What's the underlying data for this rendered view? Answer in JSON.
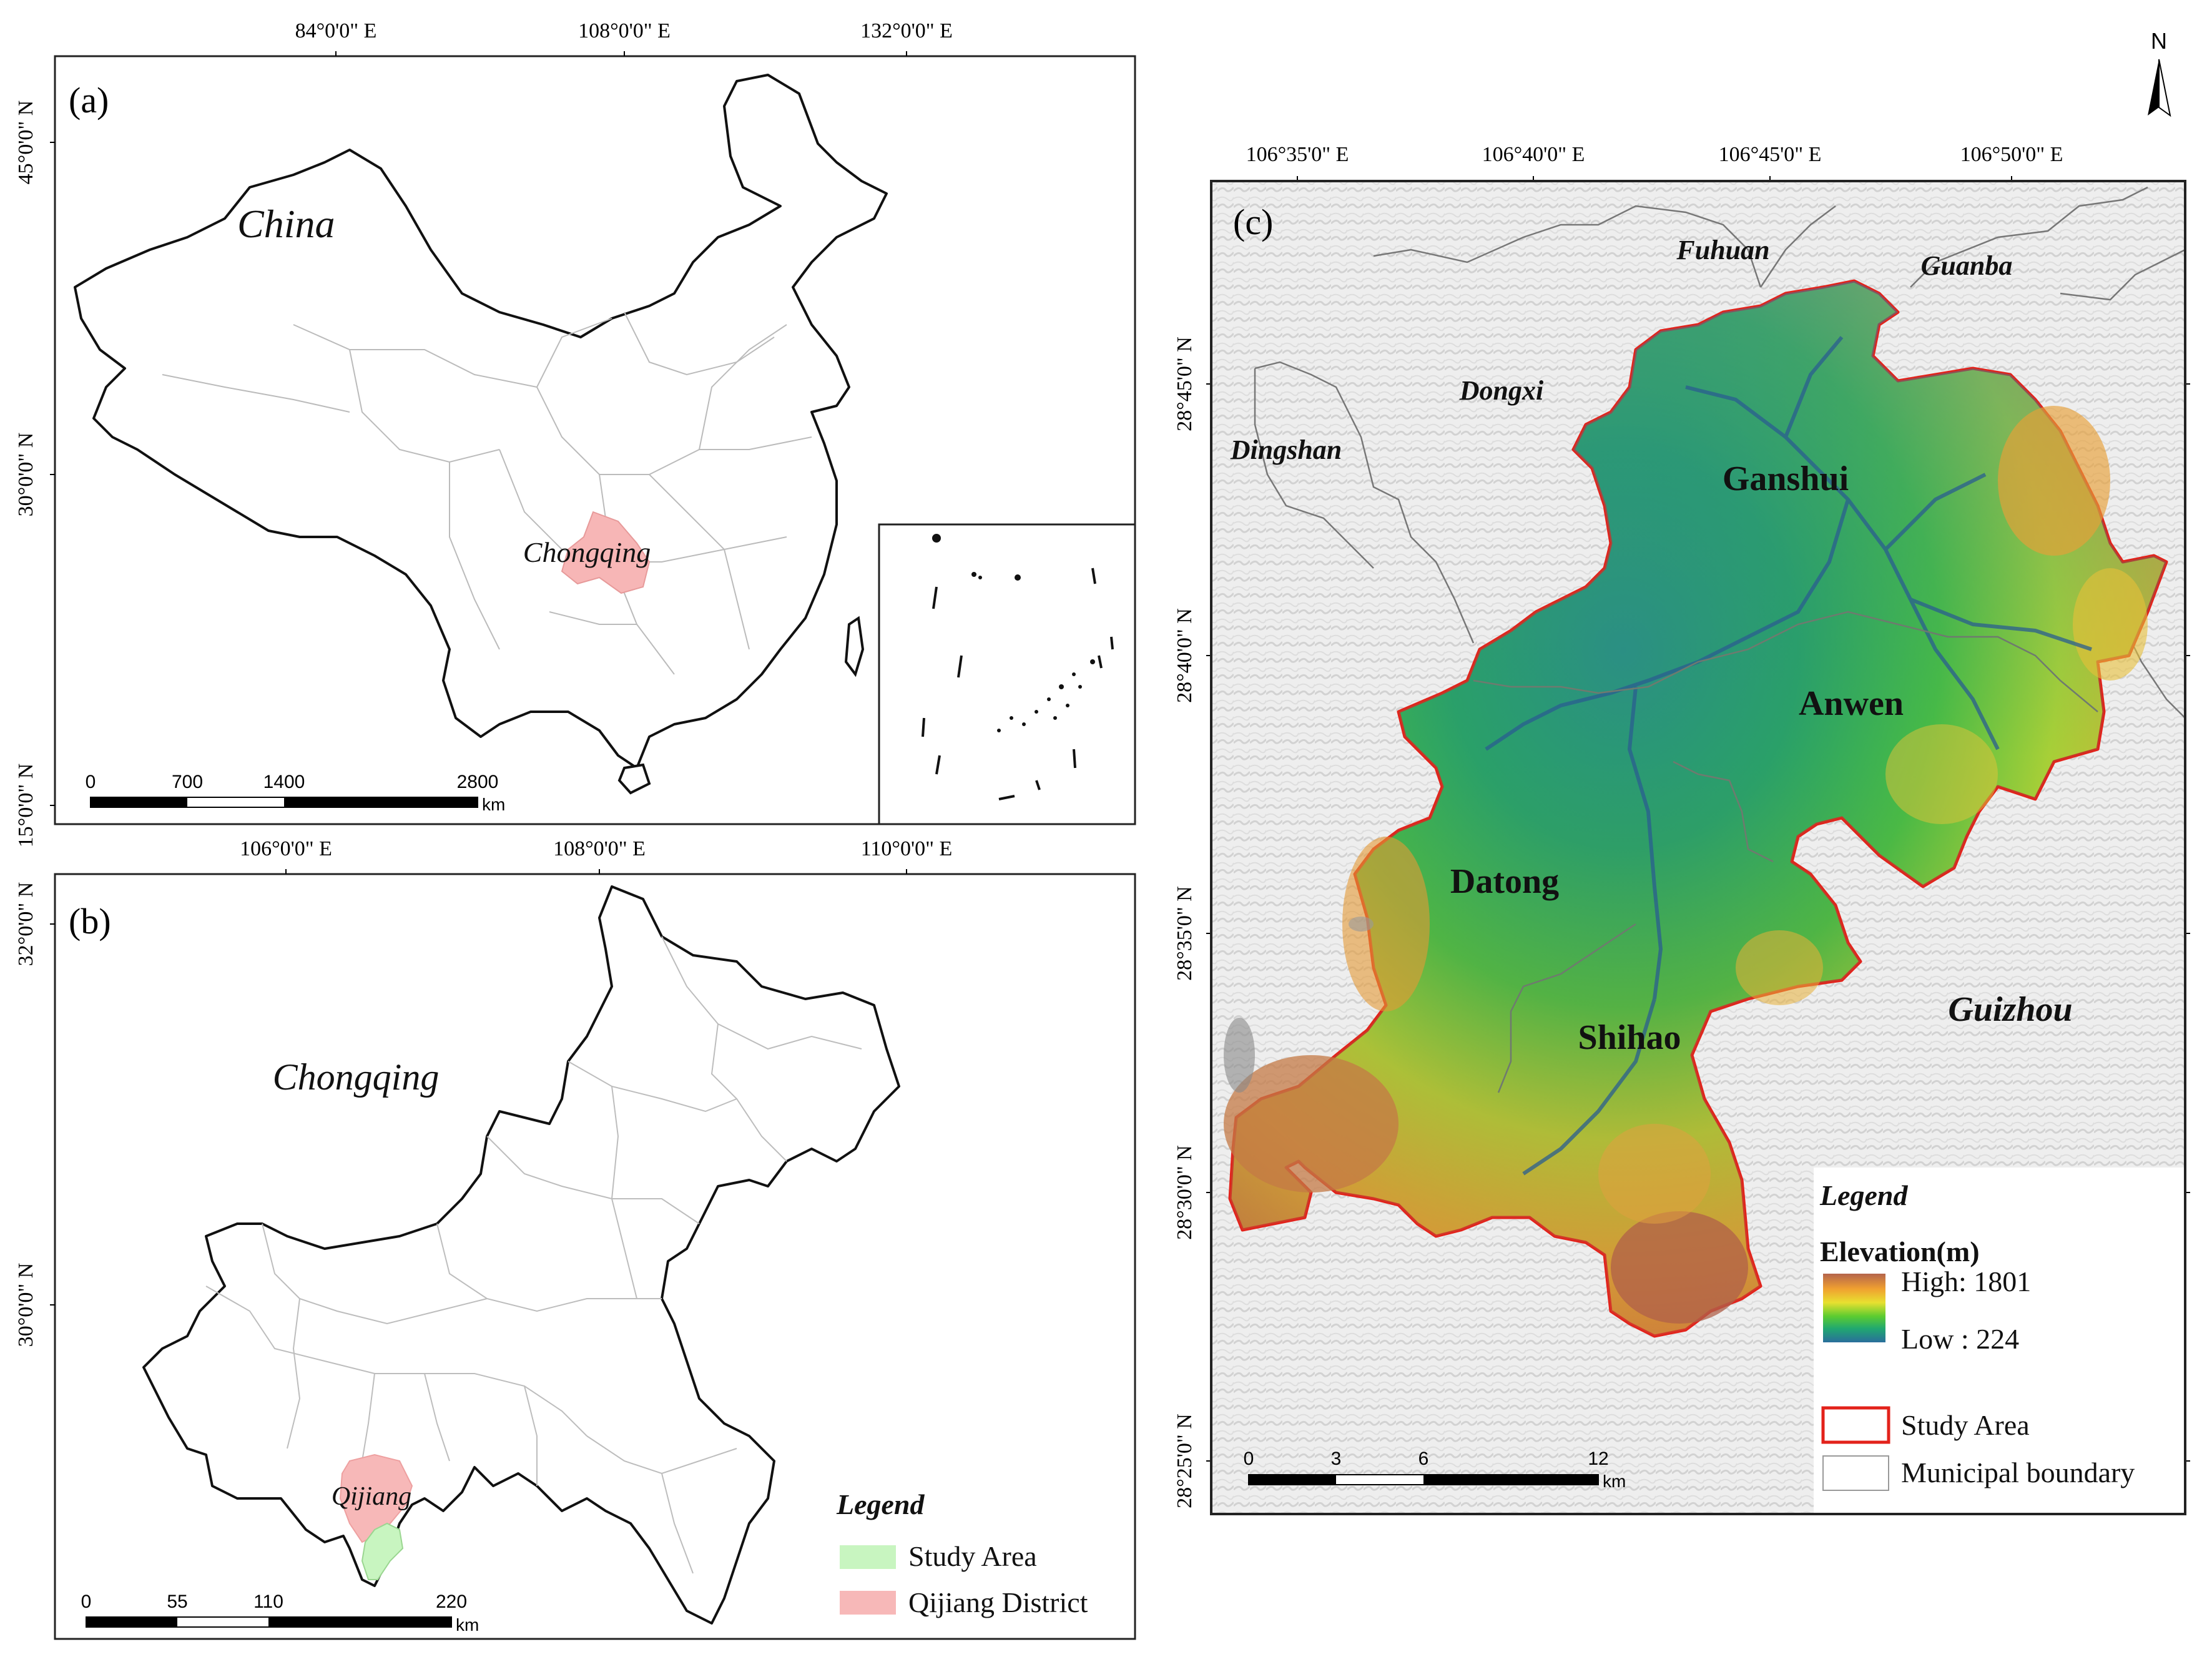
{
  "north_arrow": {
    "label": "N"
  },
  "panel_a": {
    "letter": "(a)",
    "top_ticks": [
      "84°0'0\" E",
      "108°0'0\" E",
      "132°0'0\" E"
    ],
    "left_ticks": [
      "45°0'0\" N",
      "30°0'0\" N",
      "15°0'0\" N"
    ],
    "labels": {
      "country": "China",
      "region": "Chongqing"
    },
    "scale": {
      "values": [
        "0",
        "700",
        "1400",
        "2800"
      ],
      "unit": "km"
    }
  },
  "panel_b": {
    "letter": "(b)",
    "top_ticks": [
      "106°0'0\" E",
      "108°0'0\" E",
      "110°0'0\" E"
    ],
    "left_ticks": [
      "32°0'0\" N",
      "30°0'0\" N"
    ],
    "labels": {
      "region": "Chongqing",
      "district": "Qijiang"
    },
    "scale": {
      "values": [
        "0",
        "55",
        "110",
        "220"
      ],
      "unit": "km"
    },
    "legend": {
      "title": "Legend",
      "items": [
        {
          "label": "Study Area",
          "color": "#c8f5c0"
        },
        {
          "label": "Qijiang District",
          "color": "#f7b8b8"
        }
      ]
    }
  },
  "panel_c": {
    "letter": "(c)",
    "top_ticks": [
      "106°35'0\" E",
      "106°40'0\" E",
      "106°45'0\" E",
      "106°50'0\" E"
    ],
    "left_ticks": [
      "28°45'0\" N",
      "28°40'0\" N",
      "28°35'0\" N",
      "28°30'0\" N",
      "28°25'0\" N"
    ],
    "towns_outside": [
      "Fuhuan",
      "Guanba",
      "Dongxi",
      "Dingshan"
    ],
    "province": "Guizhou",
    "towns_inside": [
      "Ganshui",
      "Anwen",
      "Datong",
      "Shihao"
    ],
    "scale": {
      "values": [
        "0",
        "3",
        "6",
        "12"
      ],
      "unit": "km"
    },
    "legend": {
      "title": "Legend",
      "elevation_title": "Elevation(m)",
      "high": "High: 1801",
      "low": "Low : 224",
      "gradient": [
        "#b5654c",
        "#f0a030",
        "#e8e030",
        "#5ccc30",
        "#20a870",
        "#2a6e9c"
      ],
      "items": [
        {
          "label": "Study Area",
          "color": "#e3221b"
        },
        {
          "label": "Municipal boundary",
          "color": "#999999"
        }
      ]
    }
  }
}
